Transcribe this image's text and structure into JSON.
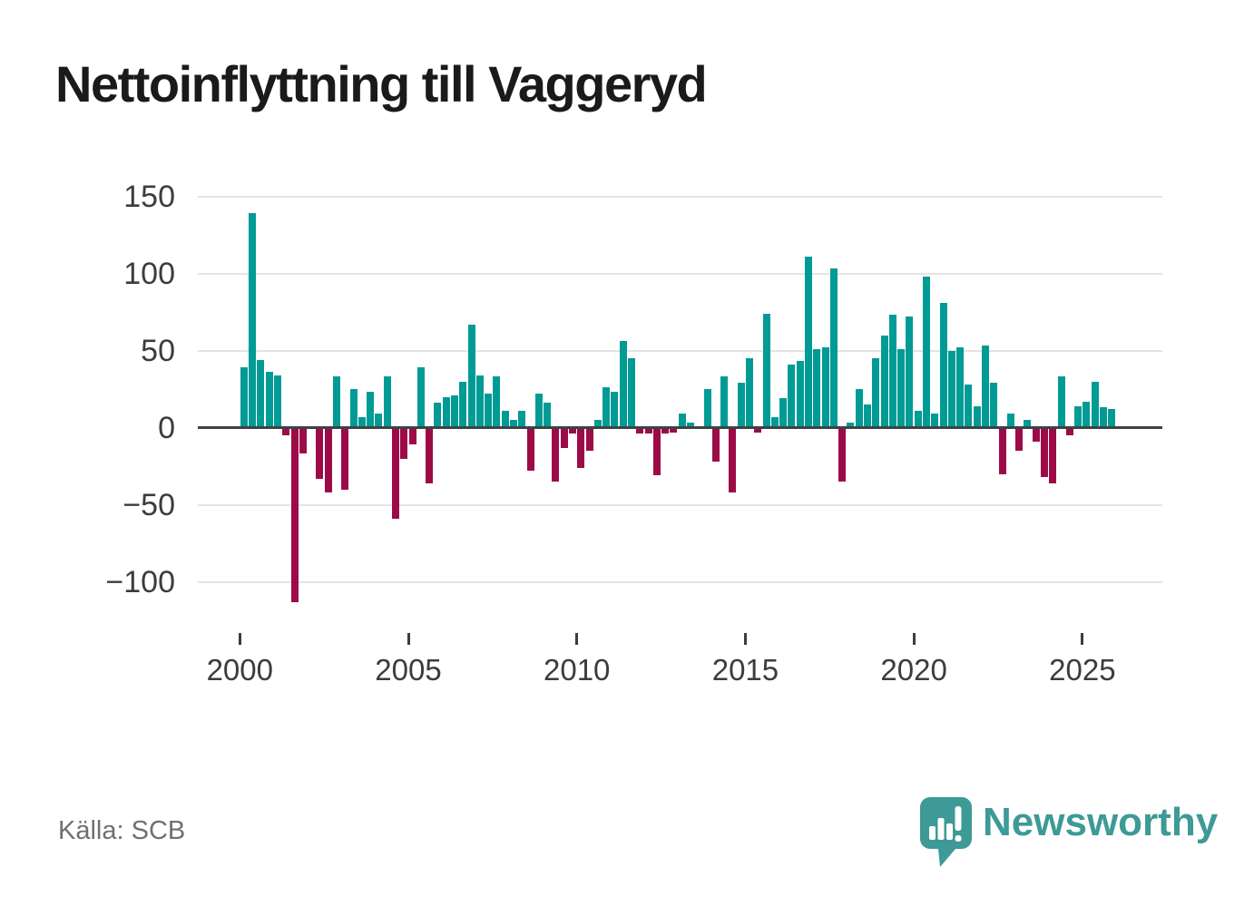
{
  "title": "Nettoinflyttning till Vaggeryd",
  "source": "Källa: SCB",
  "branding": {
    "name": "Newsworthy",
    "icon": "newsworthy-pin-barchart",
    "color": "#3d9a96"
  },
  "colors": {
    "positive_bar": "#009b94",
    "negative_bar": "#9c0b48",
    "gridline": "#e4e4e4",
    "zero_axis": "#3d4245",
    "tick_label": "#3c3c3c",
    "title": "#1a1a18",
    "source": "#707070",
    "background": "#ffffff"
  },
  "chart_data": {
    "type": "bar",
    "title": "Nettoinflyttning till Vaggeryd",
    "frequency": "quarterly",
    "grid": "horizontal",
    "legend": "none",
    "ylim": [
      -125,
      155
    ],
    "y_ticks": [
      150,
      100,
      50,
      0,
      -50,
      -100
    ],
    "x_ticks": [
      2000,
      2005,
      2010,
      2015,
      2020,
      2025
    ],
    "x": [
      "2000Q1",
      "2000Q2",
      "2000Q3",
      "2000Q4",
      "2001Q1",
      "2001Q2",
      "2001Q3",
      "2001Q4",
      "2002Q1",
      "2002Q2",
      "2002Q3",
      "2002Q4",
      "2003Q1",
      "2003Q2",
      "2003Q3",
      "2003Q4",
      "2004Q1",
      "2004Q2",
      "2004Q3",
      "2004Q4",
      "2005Q1",
      "2005Q2",
      "2005Q3",
      "2005Q4",
      "2006Q1",
      "2006Q2",
      "2006Q3",
      "2006Q4",
      "2007Q1",
      "2007Q2",
      "2007Q3",
      "2007Q4",
      "2008Q1",
      "2008Q2",
      "2008Q3",
      "2008Q4",
      "2009Q1",
      "2009Q2",
      "2009Q3",
      "2009Q4",
      "2010Q1",
      "2010Q2",
      "2010Q3",
      "2010Q4",
      "2011Q1",
      "2011Q2",
      "2011Q3",
      "2011Q4",
      "2012Q1",
      "2012Q2",
      "2012Q3",
      "2012Q4",
      "2013Q1",
      "2013Q2",
      "2013Q3",
      "2013Q4",
      "2014Q1",
      "2014Q2",
      "2014Q3",
      "2014Q4",
      "2015Q1",
      "2015Q2",
      "2015Q3",
      "2015Q4",
      "2016Q1",
      "2016Q2",
      "2016Q3",
      "2016Q4",
      "2017Q1",
      "2017Q2",
      "2017Q3",
      "2017Q4",
      "2018Q1",
      "2018Q2",
      "2018Q3",
      "2018Q4",
      "2019Q1",
      "2019Q2",
      "2019Q3",
      "2019Q4",
      "2020Q1",
      "2020Q2",
      "2020Q3",
      "2020Q4",
      "2021Q1",
      "2021Q2",
      "2021Q3",
      "2021Q4",
      "2022Q1",
      "2022Q2",
      "2022Q3",
      "2022Q4",
      "2023Q1",
      "2023Q2",
      "2023Q3",
      "2023Q4",
      "2024Q1",
      "2024Q2",
      "2024Q3",
      "2024Q4",
      "2025Q1",
      "2025Q2",
      "2025Q3",
      "2025Q4"
    ],
    "values": [
      39,
      139,
      44,
      36,
      34,
      -5,
      -113,
      -17,
      0,
      -33,
      -42,
      33,
      -40,
      25,
      7,
      23,
      9,
      33,
      -59,
      -20,
      -11,
      39,
      -36,
      16,
      20,
      21,
      30,
      67,
      34,
      22,
      33,
      11,
      5,
      11,
      -28,
      22,
      16,
      -35,
      -13,
      -4,
      -26,
      -15,
      5,
      26,
      23,
      56,
      45,
      -4,
      -4,
      -31,
      -4,
      -3,
      9,
      3,
      0,
      25,
      -22,
      33,
      -42,
      29,
      45,
      -3,
      74,
      7,
      19,
      41,
      43,
      111,
      51,
      52,
      103,
      -35,
      3,
      25,
      15,
      45,
      60,
      73,
      51,
      72,
      11,
      98,
      9,
      81,
      50,
      52,
      28,
      14,
      53,
      29,
      -30,
      9,
      -15,
      5,
      -9,
      -32,
      -36,
      33,
      -5,
      14,
      17,
      30,
      13,
      12
    ]
  }
}
